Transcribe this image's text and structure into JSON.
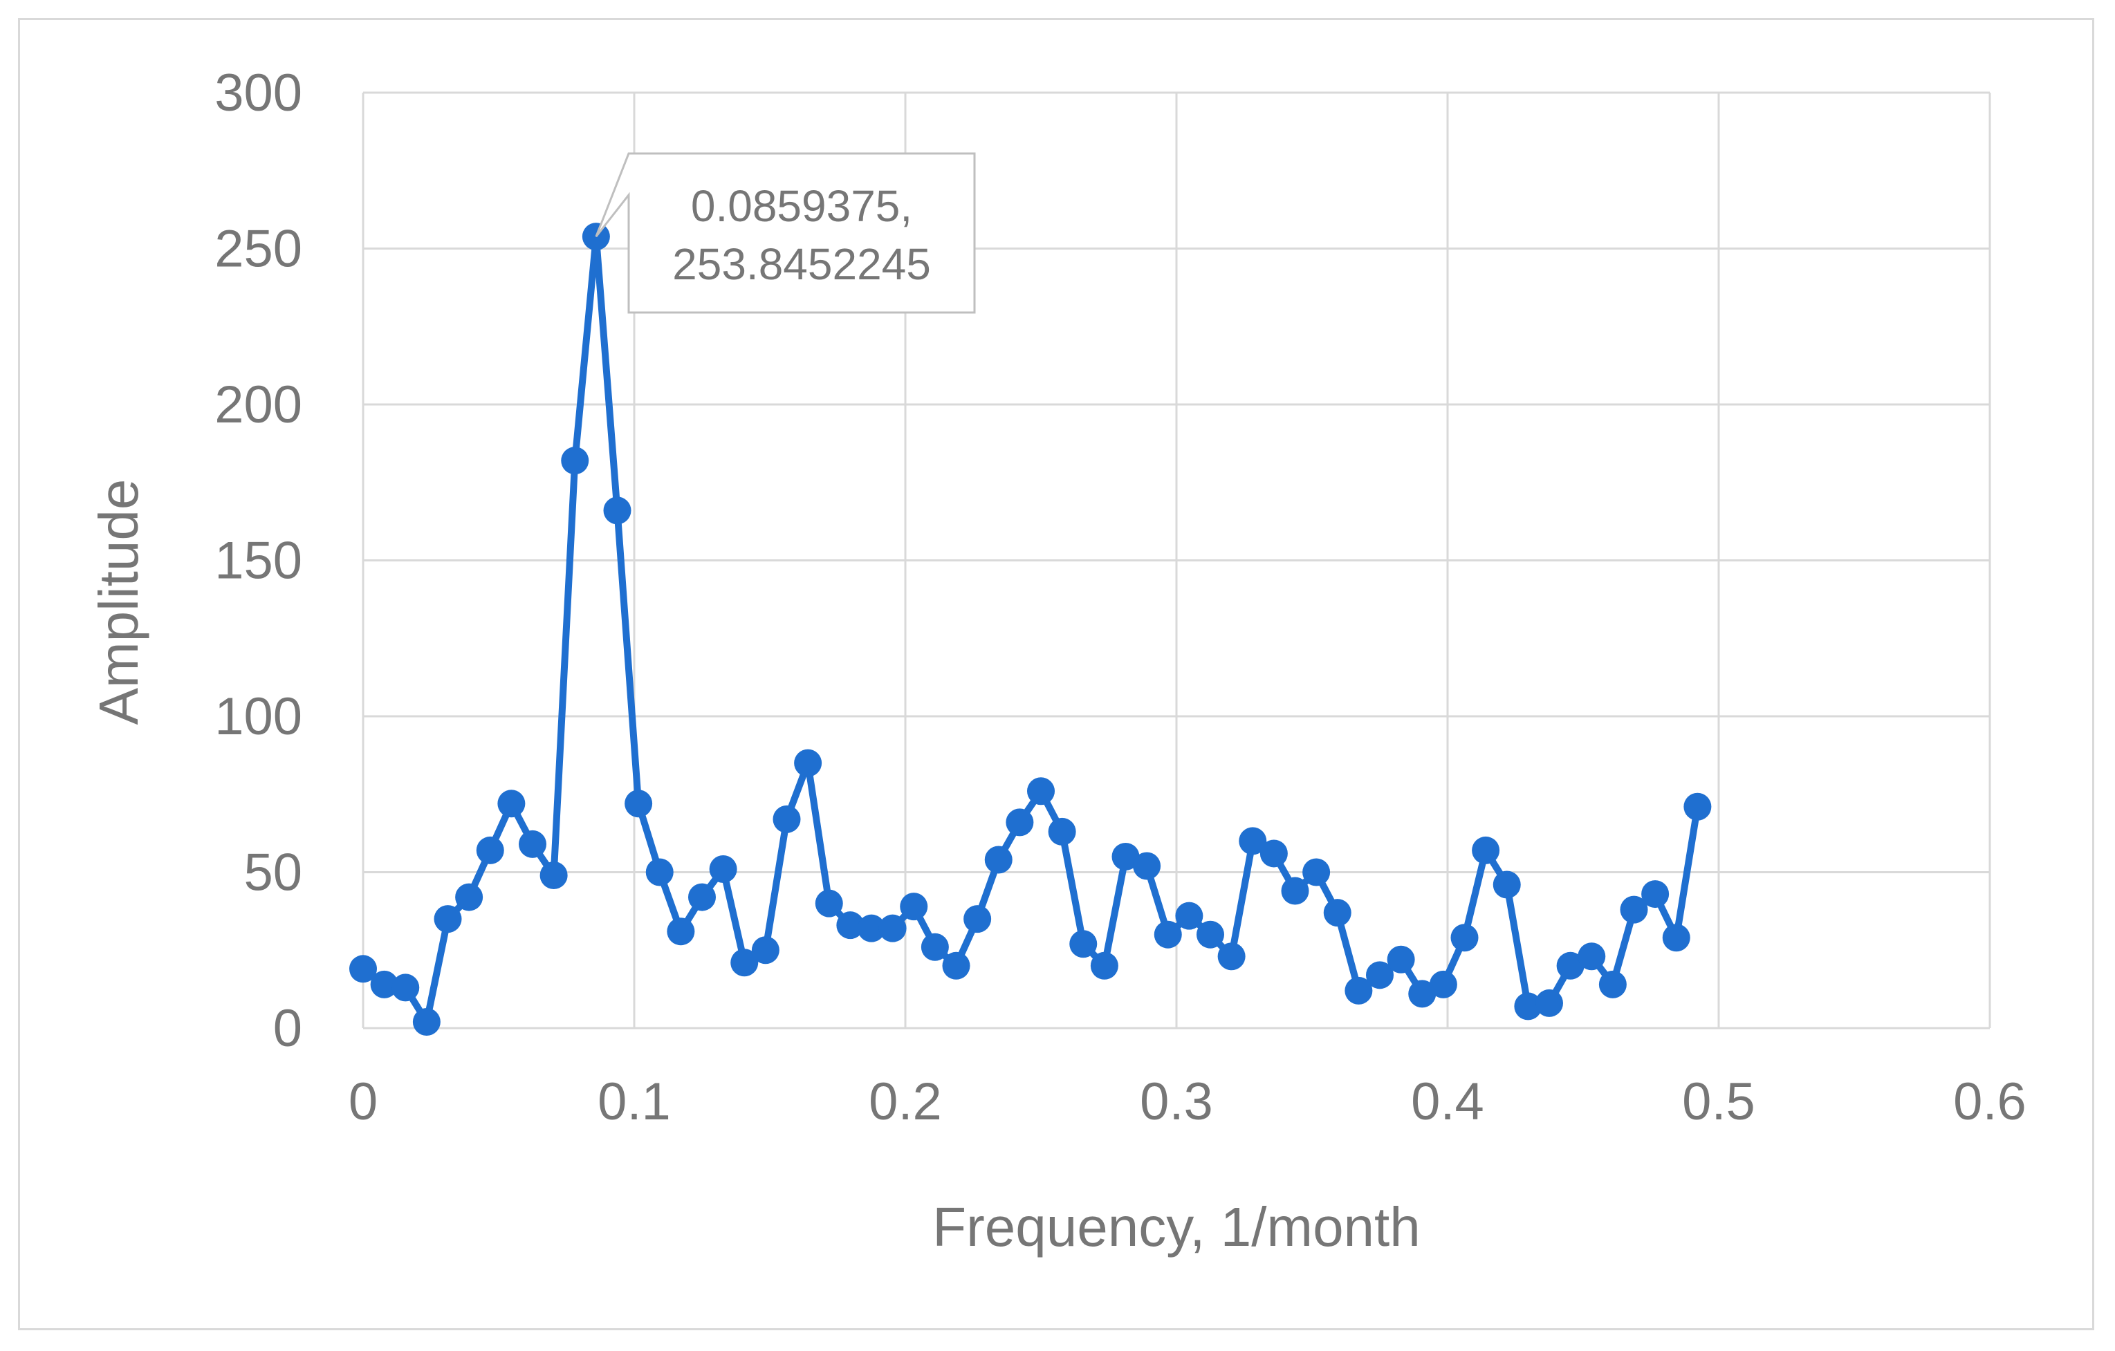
{
  "chart_data": {
    "type": "scatter",
    "title": "",
    "xlabel": "Frequency, 1/month",
    "ylabel": "Amplitude",
    "xlim": [
      0,
      0.6
    ],
    "ylim": [
      0,
      300
    ],
    "x_ticks": [
      "0",
      "0.1",
      "0.2",
      "0.3",
      "0.4",
      "0.5",
      "0.6"
    ],
    "y_ticks": [
      "0",
      "50",
      "100",
      "150",
      "200",
      "250",
      "300"
    ],
    "grid": true,
    "legend": "none",
    "line_color": "#1f6fd0",
    "series": [
      {
        "x": [
          0,
          0.0078125,
          0.015625,
          0.0234375,
          0.03125,
          0.0390625,
          0.046875,
          0.0546875,
          0.0625,
          0.0703125,
          0.078125,
          0.0859375,
          0.09375,
          0.1015625,
          0.109375,
          0.1171875,
          0.125,
          0.1328125,
          0.140625,
          0.1484375,
          0.15625,
          0.1640625,
          0.171875,
          0.1796875,
          0.1875,
          0.1953125,
          0.203125,
          0.2109375,
          0.21875,
          0.2265625,
          0.234375,
          0.2421875,
          0.25,
          0.2578125,
          0.265625,
          0.2734375,
          0.28125,
          0.2890625,
          0.296875,
          0.3046875,
          0.3125,
          0.3203125,
          0.328125,
          0.3359375,
          0.34375,
          0.3515625,
          0.359375,
          0.3671875,
          0.375,
          0.3828125,
          0.390625,
          0.3984375,
          0.40625,
          0.4140625,
          0.421875,
          0.4296875,
          0.4375,
          0.4453125,
          0.453125,
          0.4609375,
          0.46875,
          0.4765625,
          0.484375,
          0.4921875
        ],
        "y": [
          19,
          14,
          13,
          2,
          35,
          42,
          57,
          72,
          59,
          49,
          182,
          253.8452245,
          166,
          72,
          50,
          31,
          42,
          51,
          21,
          25,
          67,
          85,
          40,
          33,
          32,
          32,
          39,
          26,
          20,
          35,
          54,
          66,
          76,
          63,
          27,
          20,
          55,
          52,
          30,
          36,
          30,
          23,
          60,
          56,
          44,
          50,
          37,
          12,
          17,
          22,
          11,
          14,
          29,
          57,
          46,
          7,
          8,
          20,
          23,
          14,
          38,
          43,
          29,
          71
        ]
      }
    ],
    "annotations": [
      {
        "x": 0.0859375,
        "y": 253.8452245,
        "line1": "0.0859375,",
        "line2": "253.8452245"
      }
    ]
  }
}
